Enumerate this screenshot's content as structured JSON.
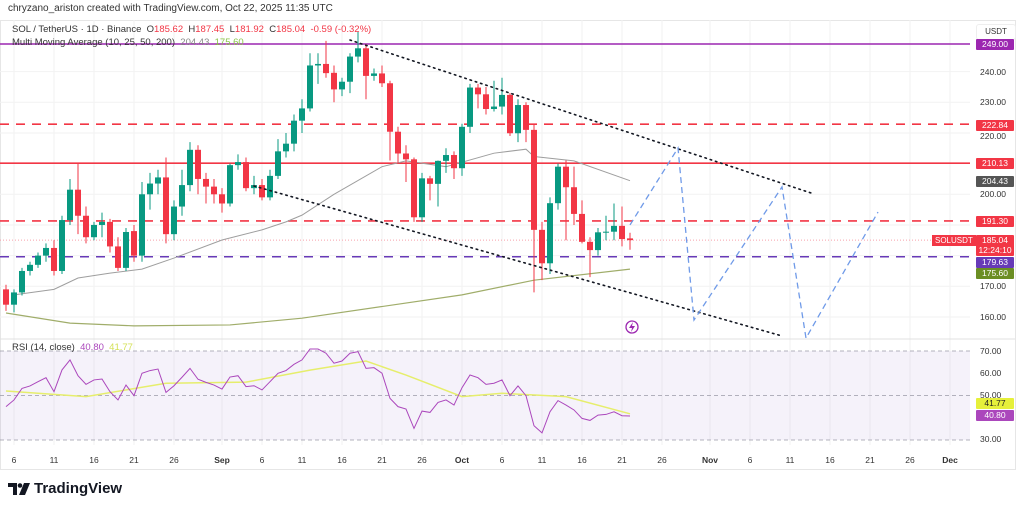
{
  "header": {
    "author_line": "chryzano_ariston created with TradingView.com, Oct 22, 2025 11:35 UTC"
  },
  "legend": {
    "symbol": "SOL / TetherUS · 1D · Binance",
    "o_label": "O",
    "o": "185.62",
    "h_label": "H",
    "h": "187.45",
    "l_label": "L",
    "l": "181.92",
    "c_label": "C",
    "c": "185.04",
    "change": "-0.59 (-0.32%)",
    "ma_name": "Multi Moving Average (10, 25, 50, 200)",
    "ma_val1": "204.43",
    "ma_val2": "175.60",
    "rsi_name": "RSI (14, close)",
    "rsi_val": "40.80",
    "rsi_ma_val": "41.77"
  },
  "price_axis": {
    "currency": "USDT",
    "ticks": [
      "240.00",
      "230.00",
      "220.00",
      "200.00",
      "170.00",
      "160.00"
    ],
    "labels": {
      "l249": "249.00",
      "l222": "222.84",
      "l210": "210.13",
      "l204": "204.43",
      "l191": "191.30",
      "last": "185.04",
      "countdown": "12:24:10",
      "l179": "179.63",
      "l175": "175.60"
    },
    "symbol_tag": "SOLUSDT"
  },
  "rsi_axis": {
    "ticks": [
      "70.00",
      "60.00",
      "50.00",
      "30.00"
    ],
    "rsi_label": "40.80",
    "rsi_ma_label": "41.77"
  },
  "date_axis": {
    "ticks": [
      {
        "label": "6",
        "date": "2025-08-06"
      },
      {
        "label": "11",
        "date": "2025-08-11"
      },
      {
        "label": "16",
        "date": "2025-08-16"
      },
      {
        "label": "21",
        "date": "2025-08-21"
      },
      {
        "label": "26",
        "date": "2025-08-26"
      },
      {
        "label": "Sep",
        "date": "2025-09-01",
        "bold": true
      },
      {
        "label": "6",
        "date": "2025-09-06"
      },
      {
        "label": "11",
        "date": "2025-09-11"
      },
      {
        "label": "16",
        "date": "2025-09-16"
      },
      {
        "label": "21",
        "date": "2025-09-21"
      },
      {
        "label": "26",
        "date": "2025-09-26"
      },
      {
        "label": "Oct",
        "date": "2025-10-01",
        "bold": true
      },
      {
        "label": "6",
        "date": "2025-10-06"
      },
      {
        "label": "11",
        "date": "2025-10-11"
      },
      {
        "label": "16",
        "date": "2025-10-16"
      },
      {
        "label": "21",
        "date": "2025-10-21"
      },
      {
        "label": "26",
        "date": "2025-10-26"
      },
      {
        "label": "Nov",
        "date": "2025-11-01",
        "bold": true
      },
      {
        "label": "6",
        "date": "2025-11-06"
      },
      {
        "label": "11",
        "date": "2025-11-11"
      },
      {
        "label": "16",
        "date": "2025-11-16"
      },
      {
        "label": "21",
        "date": "2025-11-21"
      },
      {
        "label": "26",
        "date": "2025-11-26"
      },
      {
        "label": "Dec",
        "date": "2025-12-01",
        "bold": true
      }
    ]
  },
  "footer": {
    "brand": "TradingView"
  },
  "colors": {
    "up": "#089981",
    "down": "#f23645",
    "ma50": "#9e9e9e",
    "ma200": "#a0ad6a",
    "resistance": "#f23645",
    "top": "#9c27b0",
    "support": "#673ab7",
    "projection": "#6f9ae8",
    "rsi": "#ab47bc",
    "rsi_ma": "#e6ee6c",
    "ma_label": "#555555",
    "ma200_label": "#6b8e23"
  },
  "chart_data": {
    "type": "candlestick",
    "interval": "1D",
    "first_date": "2025-08-05",
    "ohlc": [
      [
        169,
        170.5,
        162,
        164
      ],
      [
        164,
        169,
        161.5,
        168
      ],
      [
        168,
        176,
        167,
        175
      ],
      [
        175,
        178,
        173.5,
        177
      ],
      [
        177,
        181,
        176,
        180
      ],
      [
        180,
        184,
        178,
        182.5
      ],
      [
        182.5,
        185,
        173.5,
        175
      ],
      [
        175,
        193,
        174,
        191.6
      ],
      [
        191.6,
        205,
        190,
        201.5
      ],
      [
        201.5,
        210.1,
        187,
        193
      ],
      [
        193,
        196,
        184,
        186
      ],
      [
        186,
        191,
        185,
        190
      ],
      [
        190,
        194,
        186,
        191
      ],
      [
        191,
        192,
        181,
        183
      ],
      [
        183,
        186,
        175,
        176
      ],
      [
        176,
        189,
        175,
        187.7
      ],
      [
        188,
        190,
        178,
        180
      ],
      [
        180,
        204,
        178,
        200
      ],
      [
        200,
        207,
        195,
        203.5
      ],
      [
        203.5,
        208,
        200,
        205.5
      ],
      [
        205.5,
        212,
        184,
        187
      ],
      [
        187,
        198,
        185,
        196
      ],
      [
        196,
        208,
        193,
        203
      ],
      [
        203,
        217,
        201,
        214.5
      ],
      [
        214.5,
        216,
        200,
        205
      ],
      [
        205,
        207,
        197,
        202.5
      ],
      [
        202.5,
        205,
        197,
        200
      ],
      [
        200,
        202,
        194,
        197
      ],
      [
        197,
        210,
        196,
        209.5
      ],
      [
        209.5,
        213,
        208,
        210.5
      ],
      [
        210.5,
        212,
        201,
        202
      ],
      [
        202,
        206,
        200,
        203
      ],
      [
        203,
        205,
        198,
        199
      ],
      [
        199,
        208,
        198,
        206
      ],
      [
        206,
        218,
        205,
        214
      ],
      [
        214,
        220,
        212,
        216.5
      ],
      [
        216.5,
        226,
        214,
        224
      ],
      [
        224,
        231,
        220,
        228
      ],
      [
        228,
        246,
        227,
        242
      ],
      [
        242,
        246,
        236,
        242.5
      ],
      [
        242.5,
        250,
        238,
        239.5
      ],
      [
        239.6,
        242,
        230,
        234.2
      ],
      [
        234.2,
        238,
        232,
        236.7
      ],
      [
        236.7,
        246,
        233,
        244.9
      ],
      [
        244.9,
        253,
        243,
        247.6
      ],
      [
        247.6,
        249,
        231,
        238.6
      ],
      [
        238.6,
        241,
        237,
        239.4
      ],
      [
        239.4,
        242,
        235,
        236.2
      ],
      [
        236.2,
        237,
        211,
        220.4
      ],
      [
        220.4,
        222,
        210,
        213.3
      ],
      [
        213.3,
        216,
        204,
        211.4
      ],
      [
        211.4,
        212,
        191,
        192.5
      ],
      [
        192.5,
        207,
        191,
        205.2
      ],
      [
        205.2,
        206,
        198,
        203.4
      ],
      [
        203.4,
        211,
        196,
        210.9
      ],
      [
        210.9,
        215,
        207,
        212.8
      ],
      [
        212.8,
        214,
        205,
        208.5
      ],
      [
        208.5,
        223,
        206,
        222
      ],
      [
        222,
        236,
        220,
        234.8
      ],
      [
        234.8,
        236,
        228,
        232.6
      ],
      [
        232.6,
        235,
        226,
        227.8
      ],
      [
        227.8,
        237,
        227,
        228.6
      ],
      [
        228.6,
        238,
        226,
        232.4
      ],
      [
        232.4,
        233,
        219,
        219.9
      ],
      [
        219.9,
        231,
        217,
        229.1
      ],
      [
        229.1,
        230,
        217,
        221
      ],
      [
        221,
        223,
        168,
        188.4
      ],
      [
        188.4,
        191,
        172,
        177.5
      ],
      [
        177.5,
        199,
        174,
        197.1
      ],
      [
        197.1,
        210,
        195,
        209
      ],
      [
        209,
        211,
        185,
        202.3
      ],
      [
        202.3,
        209,
        190,
        193.6
      ],
      [
        193.6,
        198,
        184,
        184.5
      ],
      [
        184.5,
        186,
        173,
        181.8
      ],
      [
        181.8,
        189,
        180,
        187.6
      ],
      [
        187.6,
        193,
        185,
        187.8
      ],
      [
        187.8,
        197,
        185,
        189.7
      ],
      [
        189.7,
        196,
        183,
        185.4
      ],
      [
        185.62,
        187.45,
        181.92,
        185.04
      ]
    ],
    "ma_slow_50": [
      [
        "2025-08-06",
        167.2
      ],
      [
        "2025-08-11",
        169
      ],
      [
        "2025-08-14",
        172.7
      ],
      [
        "2025-08-18",
        174.3
      ],
      [
        "2025-08-22",
        175.6
      ],
      [
        "2025-08-26",
        179.2
      ],
      [
        "2025-09-01",
        185.1
      ],
      [
        "2025-09-06",
        188.4
      ],
      [
        "2025-09-09",
        191
      ],
      [
        "2025-09-11",
        193.2
      ],
      [
        "2025-09-15",
        200
      ],
      [
        "2025-09-21",
        209
      ],
      [
        "2025-09-24",
        210.9
      ],
      [
        "2025-09-29",
        209
      ],
      [
        "2025-10-05",
        213.4
      ],
      [
        "2025-10-09",
        214.7
      ],
      [
        "2025-10-10",
        212.3
      ],
      [
        "2025-10-15",
        210.9
      ],
      [
        "2025-10-22",
        204.43
      ]
    ],
    "ma_200": [
      [
        "2025-08-05",
        161.3
      ],
      [
        "2025-08-13",
        158
      ],
      [
        "2025-08-21",
        157.1
      ],
      [
        "2025-09-02",
        157.4
      ],
      [
        "2025-09-11",
        159.6
      ],
      [
        "2025-10-01",
        167.2
      ],
      [
        "2025-10-10",
        172
      ],
      [
        "2025-10-22",
        175.6
      ]
    ],
    "horizontal_levels": [
      {
        "price": 249.0,
        "style": "solid",
        "color": "#9c27b0"
      },
      {
        "price": 222.84,
        "style": "dashed",
        "color": "#f23645"
      },
      {
        "price": 210.13,
        "style": "solid",
        "color": "#f23645"
      },
      {
        "price": 191.3,
        "style": "dashed",
        "color": "#f23645"
      },
      {
        "price": 185.04,
        "style": "dotted",
        "color": "#f7a1aa"
      },
      {
        "price": 179.63,
        "style": "dashed",
        "color": "#673ab7"
      }
    ],
    "trendlines": [
      [
        [
          "2025-09-17",
          250.3
        ],
        [
          "2025-11-14",
          200.1
        ]
      ],
      [
        [
          "2025-09-05",
          202.7
        ],
        [
          "2025-11-10",
          153.8
        ]
      ]
    ],
    "projection": [
      [
        "2025-10-22",
        190
      ],
      [
        "2025-10-28",
        215.1
      ],
      [
        "2025-10-30",
        159
      ],
      [
        "2025-11-10",
        202.4
      ],
      [
        "2025-11-13",
        153.1
      ],
      [
        "2025-11-22",
        194.2
      ]
    ],
    "price_range": [
      157,
      253
    ],
    "rsi": {
      "values": [
        45,
        48,
        53.2,
        54.3,
        56.2,
        58,
        51.7,
        61.5,
        66,
        58.9,
        55,
        57,
        57.4,
        51.7,
        48,
        54.7,
        49.9,
        60,
        61.2,
        61.9,
        51.4,
        54.4,
        58.2,
        62.2,
        57.3,
        55.9,
        54.7,
        52.9,
        58.3,
        58.9,
        54,
        54.4,
        52.5,
        56.2,
        60,
        61.2,
        64,
        66,
        70.9,
        70.9,
        69,
        64.5,
        65.5,
        69,
        69.7,
        62.2,
        62.5,
        60,
        48.7,
        45,
        43.9,
        35.2,
        43,
        42.4,
        46.9,
        48,
        45.7,
        53.5,
        59.2,
        58,
        55,
        55.5,
        57,
        49.9,
        54.3,
        49.9,
        36.4,
        33.2,
        42.7,
        47.7,
        45.7,
        43.5,
        39.7,
        38.8,
        41.2,
        41.5,
        42.7,
        40.9,
        40.8
      ],
      "ma": [
        [
          "2025-08-05",
          52
        ],
        [
          "2025-08-15",
          49.5
        ],
        [
          "2025-08-25",
          55.5
        ],
        [
          "2025-09-04",
          56
        ],
        [
          "2025-09-12",
          61.4
        ],
        [
          "2025-09-19",
          65.5
        ],
        [
          "2025-09-24",
          59.2
        ],
        [
          "2025-10-01",
          49.5
        ],
        [
          "2025-10-06",
          51
        ],
        [
          "2025-10-14",
          49.5
        ],
        [
          "2025-10-22",
          41.77
        ]
      ],
      "levels": [
        70,
        50,
        30
      ],
      "range": [
        30,
        70
      ]
    }
  }
}
